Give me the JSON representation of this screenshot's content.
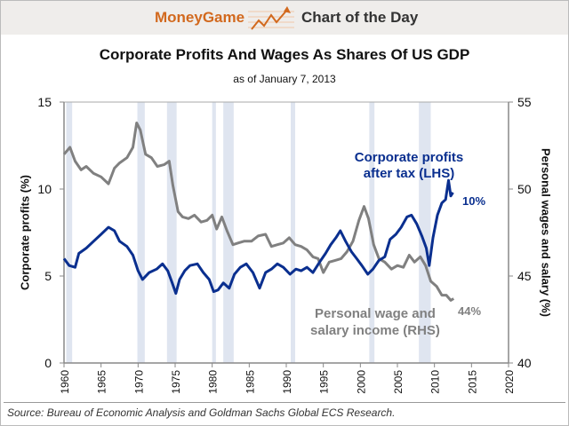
{
  "header": {
    "brand": "MoneyGame",
    "section": "Chart of the Day",
    "brand_color": "#d2691e"
  },
  "source": "Source: Bureau of Economic Analysis and Goldman Sachs Global ECS Research.",
  "chart_data": {
    "type": "line",
    "title": "Corporate Profits And Wages As Shares Of US GDP",
    "subtitle": "as of January 7, 2013",
    "ylabel": "Corporate profits (%)",
    "y2label": "Personal wages and salary (%)",
    "xlim": [
      1960,
      2020
    ],
    "ylim": [
      0,
      15
    ],
    "y2lim": [
      40,
      55
    ],
    "xticks": [
      "1960",
      "1965",
      "1970",
      "1975",
      "1980",
      "1985",
      "1990",
      "1995",
      "2000",
      "2005",
      "2010",
      "2015",
      "2020"
    ],
    "yticks": [
      "0",
      "5",
      "10",
      "15"
    ],
    "y2ticks": [
      "40",
      "45",
      "50",
      "55"
    ],
    "grid": false,
    "recessions": [
      [
        1960.3,
        1961.1
      ],
      [
        1969.9,
        1970.9
      ],
      [
        1973.9,
        1975.2
      ],
      [
        1980.0,
        1980.5
      ],
      [
        1981.5,
        1982.9
      ],
      [
        1990.6,
        1991.2
      ],
      [
        2001.2,
        2001.9
      ],
      [
        2007.9,
        2009.5
      ]
    ],
    "series": [
      {
        "name": "Corporate profits after tax (LHS)",
        "axis": "left",
        "color": "#0a2f8f",
        "end_label": "10%",
        "x": [
          1960,
          1960.7,
          1961.5,
          1962,
          1963,
          1964,
          1965,
          1966,
          1966.8,
          1967.5,
          1968.5,
          1969.3,
          1970,
          1970.6,
          1971.5,
          1972.5,
          1973.3,
          1974,
          1974.6,
          1975.1,
          1975.6,
          1976.3,
          1977,
          1978,
          1978.8,
          1979.6,
          1980.2,
          1980.8,
          1981.5,
          1982.3,
          1983,
          1983.8,
          1984.6,
          1985.5,
          1986.4,
          1987.2,
          1988,
          1988.8,
          1989.6,
          1990.5,
          1991.3,
          1992,
          1992.8,
          1993.6,
          1994.5,
          1995.3,
          1996,
          1996.7,
          1997.3,
          1998,
          1998.8,
          1999.5,
          2000.2,
          2001,
          2001.7,
          2002.5,
          2003.3,
          2004,
          2004.8,
          2005.5,
          2006.3,
          2006.9,
          2007.6,
          2008.3,
          2008.9,
          2009.3,
          2009.8,
          2010.4,
          2011,
          2011.5,
          2011.9,
          2012.2,
          2012.5
        ],
        "y": [
          6.0,
          5.6,
          5.5,
          6.3,
          6.6,
          7.0,
          7.4,
          7.8,
          7.6,
          7.0,
          6.7,
          6.2,
          5.3,
          4.8,
          5.2,
          5.4,
          5.7,
          5.3,
          4.6,
          4.0,
          4.8,
          5.3,
          5.6,
          5.7,
          5.2,
          4.8,
          4.1,
          4.2,
          4.6,
          4.3,
          5.1,
          5.5,
          5.7,
          5.2,
          4.3,
          5.2,
          5.4,
          5.7,
          5.5,
          5.1,
          5.4,
          5.3,
          5.5,
          5.2,
          5.8,
          6.3,
          6.8,
          7.2,
          7.6,
          7.0,
          6.4,
          6.0,
          5.6,
          5.1,
          5.4,
          5.9,
          6.1,
          7.1,
          7.4,
          7.8,
          8.4,
          8.5,
          8.0,
          7.3,
          6.6,
          5.6,
          7.2,
          8.5,
          9.2,
          9.4,
          10.5,
          9.6,
          9.8
        ]
      },
      {
        "name": "Personal wage and salary income (RHS)",
        "axis": "right",
        "color": "#808080",
        "end_label": "44%",
        "x": [
          1960,
          1960.8,
          1961.5,
          1962.3,
          1963,
          1964,
          1965,
          1966,
          1966.8,
          1967.5,
          1968.5,
          1969.3,
          1969.8,
          1970.3,
          1971,
          1971.8,
          1972.6,
          1973.5,
          1974.2,
          1974.7,
          1975.4,
          1976,
          1976.8,
          1977.6,
          1978.5,
          1979.3,
          1980,
          1980.6,
          1981.3,
          1982,
          1982.8,
          1983.5,
          1984.3,
          1985.3,
          1986.2,
          1987.2,
          1988,
          1988.8,
          1989.6,
          1990.4,
          1991.2,
          1992,
          1992.8,
          1993.6,
          1994.3,
          1995,
          1995.8,
          1996.6,
          1997.4,
          1998.2,
          1999,
          1999.8,
          2000.5,
          2001.1,
          2001.8,
          2002.5,
          2003.3,
          2004.2,
          2005,
          2005.8,
          2006.6,
          2007.3,
          2008.1,
          2008.8,
          2009.5,
          2010.3,
          2011,
          2011.6,
          2012.2,
          2012.6
        ],
        "y": [
          52.0,
          52.4,
          51.6,
          51.1,
          51.3,
          50.9,
          50.7,
          50.3,
          51.2,
          51.5,
          51.8,
          52.4,
          53.8,
          53.4,
          52.0,
          51.8,
          51.3,
          51.4,
          51.6,
          50.2,
          48.7,
          48.4,
          48.3,
          48.5,
          48.1,
          48.2,
          48.5,
          47.7,
          48.4,
          47.6,
          46.8,
          46.9,
          47.0,
          47.0,
          47.3,
          47.4,
          46.7,
          46.8,
          46.9,
          47.2,
          46.8,
          46.7,
          46.5,
          46.1,
          46.0,
          45.2,
          45.8,
          45.9,
          46.0,
          46.4,
          47.0,
          48.2,
          49.0,
          48.3,
          46.8,
          46.0,
          45.8,
          45.4,
          45.6,
          45.5,
          46.2,
          45.8,
          46.1,
          45.6,
          44.7,
          44.4,
          43.9,
          43.9,
          43.6,
          43.7
        ]
      }
    ]
  }
}
